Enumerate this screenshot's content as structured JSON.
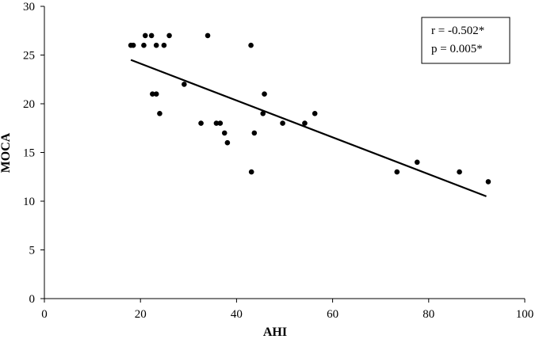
{
  "chart_data": {
    "type": "scatter",
    "xlabel": "AHI",
    "ylabel": "MOCA",
    "xlim": [
      0,
      100
    ],
    "ylim": [
      0,
      30
    ],
    "xticks": [
      0,
      20,
      40,
      60,
      80,
      100
    ],
    "yticks": [
      0,
      5,
      10,
      15,
      20,
      25,
      30
    ],
    "xtick_labels": [
      "0",
      "20",
      "40",
      "60",
      "80",
      "100"
    ],
    "ytick_labels": [
      "0",
      "5",
      "10",
      "15",
      "20",
      "25",
      "30"
    ],
    "grid": false,
    "series": [
      {
        "points": [
          {
            "x": 18.0,
            "y": 26
          },
          {
            "x": 18.5,
            "y": 26
          },
          {
            "x": 20.7,
            "y": 26
          },
          {
            "x": 21.0,
            "y": 27
          },
          {
            "x": 22.3,
            "y": 27
          },
          {
            "x": 22.5,
            "y": 21
          },
          {
            "x": 23.3,
            "y": 21
          },
          {
            "x": 23.3,
            "y": 26
          },
          {
            "x": 24.0,
            "y": 19
          },
          {
            "x": 24.9,
            "y": 26
          },
          {
            "x": 26.0,
            "y": 27
          },
          {
            "x": 29.1,
            "y": 22
          },
          {
            "x": 32.6,
            "y": 18
          },
          {
            "x": 34.0,
            "y": 27
          },
          {
            "x": 35.8,
            "y": 18
          },
          {
            "x": 36.6,
            "y": 18
          },
          {
            "x": 37.5,
            "y": 17
          },
          {
            "x": 38.1,
            "y": 16
          },
          {
            "x": 43.0,
            "y": 26
          },
          {
            "x": 43.1,
            "y": 13
          },
          {
            "x": 43.7,
            "y": 17
          },
          {
            "x": 45.5,
            "y": 19
          },
          {
            "x": 45.8,
            "y": 21
          },
          {
            "x": 49.6,
            "y": 18
          },
          {
            "x": 54.2,
            "y": 18
          },
          {
            "x": 56.3,
            "y": 19
          },
          {
            "x": 73.4,
            "y": 13
          },
          {
            "x": 77.6,
            "y": 14
          },
          {
            "x": 86.4,
            "y": 13
          },
          {
            "x": 92.4,
            "y": 12
          }
        ]
      }
    ],
    "trendline": {
      "x": [
        18.0,
        92.0
      ],
      "y": [
        24.5,
        10.5
      ]
    },
    "annotation": {
      "lines": [
        "r = -0.502*",
        "p = 0.005*"
      ],
      "placement": "top-right"
    }
  }
}
